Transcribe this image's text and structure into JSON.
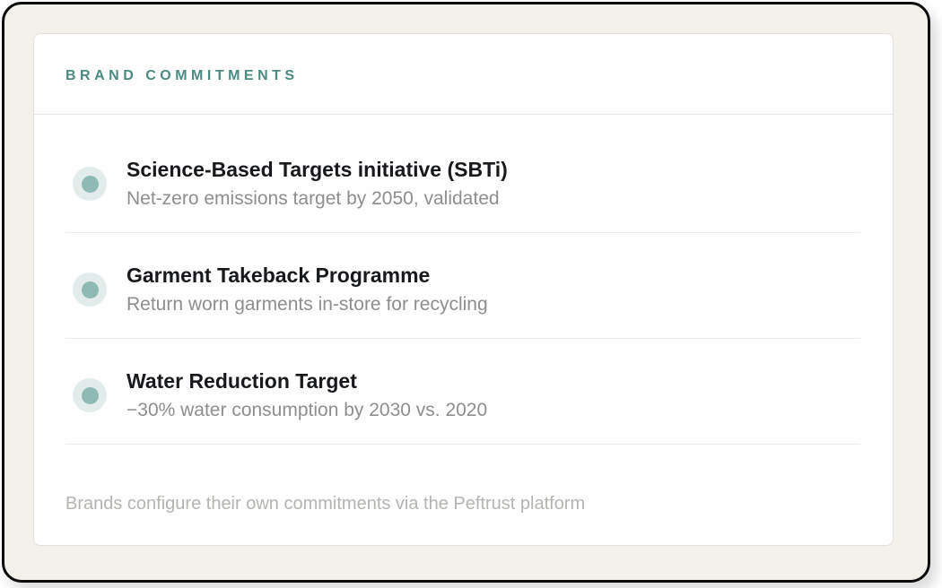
{
  "card": {
    "title": "BRAND COMMITMENTS",
    "items": [
      {
        "icon": "teal-dot-icon",
        "title": "Science-Based Targets initiative (SBTi)",
        "description": "Net-zero emissions target by 2050, validated"
      },
      {
        "icon": "teal-dot-icon",
        "title": "Garment Takeback Programme",
        "description": "Return worn garments in-store for recycling"
      },
      {
        "icon": "teal-dot-icon",
        "title": "Water Reduction Target",
        "description": "−30% water consumption by 2030 vs. 2020"
      }
    ],
    "footer": "Brands configure their own commitments via the Peftrust platform"
  },
  "colors": {
    "accent_teal": "#4d8a82",
    "dot_inner": "#8fbab4",
    "dot_outer": "#e2edeb",
    "frame_background": "#f3f1eb",
    "frame_border": "#0d0d0d",
    "card_background": "#fefefe",
    "card_border": "#e3e1db",
    "title_text": "#17191c",
    "subtitle_text": "#8e8e8e",
    "footer_text": "#b5b4b1"
  }
}
